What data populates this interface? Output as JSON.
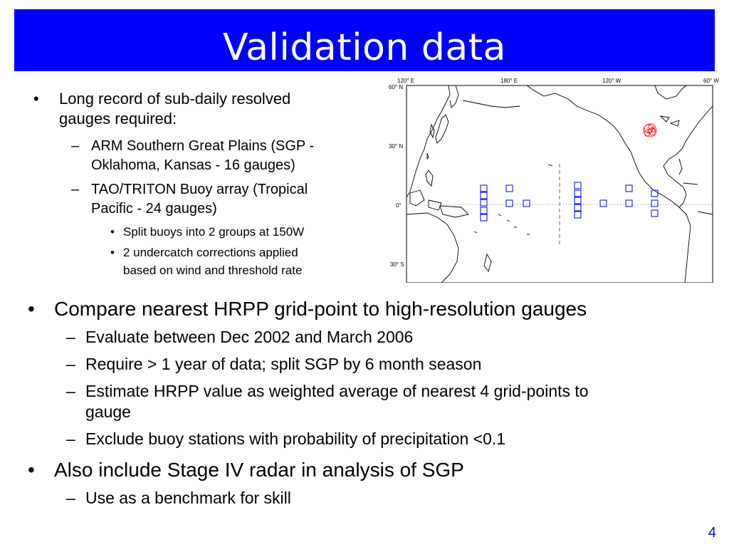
{
  "title": "Validation data",
  "top_bullets": {
    "b1": {
      "marker": "•",
      "text1": "Long record of sub-daily resolved",
      "text2": "gauges required:"
    },
    "s1": {
      "marker": "–",
      "text1": "ARM Southern Great Plains (SGP -",
      "text2": "Oklahoma, Kansas - 16 gauges)"
    },
    "s2": {
      "marker": "–",
      "text1": "TAO/TRITON Buoy array (Tropical",
      "text2": "Pacific - 24 gauges)"
    },
    "t1": {
      "marker": "•",
      "text1": "Split buoys into 2 groups at 150W"
    },
    "t2": {
      "marker": "•",
      "text1": "2 undercatch corrections applied",
      "text2": "based on wind and threshold rate"
    }
  },
  "bottom_bullets": {
    "b1": {
      "marker": "•",
      "text1": "Compare nearest HRPP grid-point to high-resolution gauges"
    },
    "s1": {
      "marker": "–",
      "text1": "Evaluate between Dec 2002 and March 2006"
    },
    "s2": {
      "marker": "–",
      "text1": "Require > 1 year of data; split SGP by 6 month season"
    },
    "s3": {
      "marker": "–",
      "text1": "Estimate HRPP value as weighted average of nearest 4 grid-points to",
      "text2": "gauge"
    },
    "s4": {
      "marker": "–",
      "text1": "Exclude buoy stations with probability of precipitation <0.1"
    },
    "b2": {
      "marker": "•",
      "text1": "Also include Stage IV radar in analysis of SGP"
    },
    "s5": {
      "marker": "–",
      "text1": "Use as a benchmark for skill"
    }
  },
  "map": {
    "lon_labels": [
      "120° E",
      "180° E",
      "120° W",
      "60° W"
    ],
    "lat_labels": [
      "60° N",
      "30° N",
      "0°",
      "30° S"
    ],
    "gauge_color": "#ff0000",
    "buoy_color": "#0000ff"
  },
  "page_number": "4"
}
